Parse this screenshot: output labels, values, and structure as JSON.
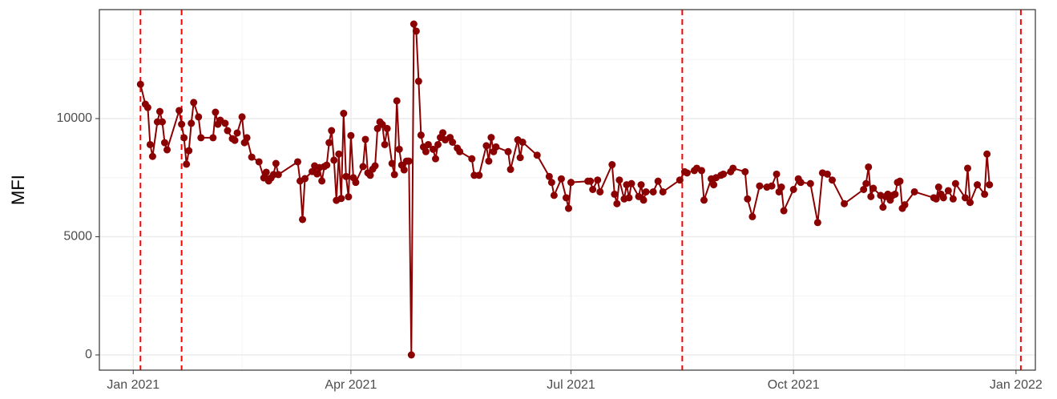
{
  "chart_data": {
    "type": "line",
    "y_label": "MFI",
    "color": "#8b0000",
    "grid": true,
    "x": [
      3,
      5,
      6,
      7,
      8,
      10,
      11,
      12,
      13,
      14,
      19,
      20,
      21,
      22,
      23,
      24,
      25,
      27,
      28,
      33,
      34,
      35,
      36,
      38,
      39,
      41,
      42,
      43,
      45,
      46,
      47,
      49,
      52,
      54,
      55,
      56,
      57,
      58,
      59,
      60,
      68,
      69,
      70,
      71,
      74,
      75,
      76,
      77,
      78,
      79,
      80,
      81,
      82,
      83,
      84,
      85,
      86,
      87,
      88,
      89,
      90,
      91,
      92,
      95,
      96,
      97,
      98,
      99,
      100,
      101,
      102,
      103,
      104,
      105,
      107,
      108,
      109,
      110,
      111,
      112,
      113,
      114,
      115,
      116,
      117,
      118,
      119,
      120,
      121,
      122,
      124,
      125,
      126,
      127,
      128,
      129,
      131,
      132,
      134,
      135,
      140,
      141,
      143,
      146,
      147,
      148,
      149,
      150,
      155,
      156,
      159,
      160,
      161,
      167,
      172,
      173,
      174,
      177,
      179,
      180,
      181,
      188,
      189,
      190,
      192,
      193,
      198,
      199,
      200,
      201,
      203,
      204,
      205,
      206,
      209,
      210,
      211,
      212,
      215,
      217,
      219,
      226,
      228,
      229,
      232,
      233,
      235,
      236,
      239,
      240,
      241,
      243,
      244,
      247,
      248,
      253,
      254,
      256,
      259,
      262,
      264,
      266,
      267,
      268,
      269,
      273,
      275,
      276,
      280,
      283,
      285,
      287,
      289,
      294,
      302,
      303,
      304,
      305,
      306,
      309,
      310,
      311,
      312,
      313,
      314,
      315,
      316,
      317,
      318,
      319,
      323,
      331,
      332,
      333,
      334,
      335,
      337,
      339,
      340,
      344,
      345,
      346,
      349,
      352,
      353,
      354
    ],
    "values": [
      11450,
      10610,
      10470,
      8900,
      8400,
      9860,
      10300,
      9860,
      8980,
      8680,
      10340,
      9760,
      9190,
      8070,
      8640,
      9800,
      10680,
      10070,
      9190,
      9190,
      10270,
      9760,
      9930,
      9800,
      9490,
      9150,
      9080,
      9390,
      10070,
      8980,
      9190,
      8370,
      8170,
      7490,
      7730,
      7360,
      7490,
      7630,
      8100,
      7630,
      8170,
      7360,
      5730,
      7460,
      7760,
      8000,
      7660,
      7930,
      7360,
      7970,
      8030,
      8980,
      9490,
      8240,
      6540,
      8500,
      6620,
      10220,
      7550,
      6690,
      9280,
      7500,
      7300,
      7970,
      9120,
      7700,
      7600,
      7860,
      8000,
      9580,
      9860,
      9750,
      8900,
      9580,
      8100,
      7630,
      10750,
      8700,
      8030,
      7830,
      8200,
      8200,
      0,
      14000,
      13700,
      11580,
      9300,
      8800,
      8600,
      8900,
      8700,
      8300,
      8900,
      9200,
      9400,
      9100,
      9200,
      9000,
      8750,
      8600,
      8300,
      7600,
      7600,
      8850,
      8200,
      9200,
      8600,
      8800,
      8600,
      7850,
      9100,
      8350,
      9000,
      8450,
      7550,
      7300,
      6750,
      7450,
      6650,
      6200,
      7300,
      7350,
      7350,
      7000,
      7400,
      6900,
      8050,
      6800,
      6400,
      7400,
      6600,
      7200,
      6650,
      7250,
      6700,
      7200,
      6550,
      6900,
      6900,
      7350,
      6900,
      7400,
      7750,
      7700,
      7800,
      7900,
      7800,
      6550,
      7450,
      7200,
      7500,
      7600,
      7650,
      7750,
      7900,
      7750,
      6600,
      5850,
      7150,
      7100,
      7150,
      7650,
      6900,
      7100,
      6100,
      7000,
      7450,
      7300,
      7250,
      5600,
      7700,
      7650,
      7400,
      6400,
      7000,
      7250,
      7950,
      6700,
      7050,
      6750,
      6250,
      6700,
      6800,
      6550,
      6750,
      6800,
      7300,
      7350,
      6200,
      6350,
      6900,
      6650,
      6600,
      7100,
      6800,
      6650,
      6950,
      6600,
      7250,
      6650,
      7900,
      6450,
      7200,
      6800,
      8500,
      7200
    ],
    "xlim": [
      -14,
      373
    ],
    "xticks": [
      {
        "value": 0,
        "label": "Jan 2021"
      },
      {
        "value": 90,
        "label": "Apr 2021"
      },
      {
        "value": 181,
        "label": "Jul 2021"
      },
      {
        "value": 273,
        "label": "Oct 2021"
      },
      {
        "value": 365,
        "label": "Jan 2022"
      }
    ],
    "ylim": [
      -644,
      14610
    ],
    "yticks": [
      0,
      5000,
      10000
    ],
    "vlines": [
      3,
      20,
      227,
      367
    ],
    "vline_color": "#ff0000"
  }
}
